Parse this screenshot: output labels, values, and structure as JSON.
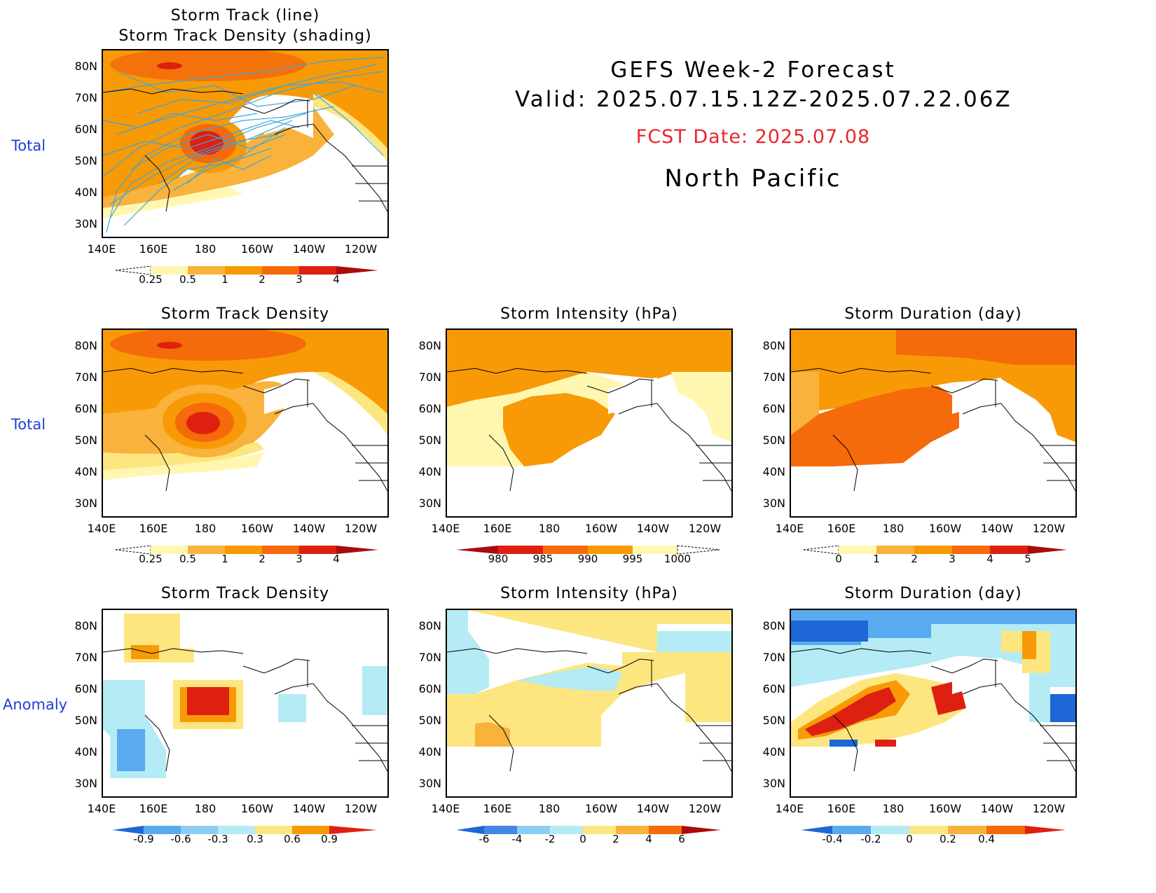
{
  "header": {
    "line1": "GEFS Week-2 Forecast",
    "line2": "Valid: 2025.07.15.12Z-2025.07.22.06Z",
    "fcst": "FCST Date: 2025.07.08",
    "region": "North Pacific"
  },
  "rows": {
    "r1": "Total",
    "r2": "Total",
    "r3": "Anomaly"
  },
  "axes": {
    "lat": [
      "80N",
      "70N",
      "60N",
      "50N",
      "40N",
      "30N"
    ],
    "lon": [
      "140E",
      "160E",
      "180",
      "160W",
      "140W",
      "120W"
    ]
  },
  "panels": {
    "p1": {
      "title1": "Storm Track (line)",
      "title2": "Storm Track Density (shading)"
    },
    "p2": {
      "title": "Storm Track Density"
    },
    "p3": {
      "title": "Storm Intensity (hPa)"
    },
    "p4": {
      "title": "Storm Duration (day)"
    },
    "p5": {
      "title": "Storm Track Density"
    },
    "p6": {
      "title": "Storm Intensity (hPa)"
    },
    "p7": {
      "title": "Storm Duration (day)"
    }
  },
  "colorbars": {
    "density": [
      "0.25",
      "0.5",
      "1",
      "2",
      "3",
      "4"
    ],
    "intensity": [
      "980",
      "985",
      "990",
      "995",
      "1000"
    ],
    "duration": [
      "0",
      "1",
      "2",
      "3",
      "4",
      "5"
    ],
    "density_anom": [
      "-0.9",
      "-0.6",
      "-0.3",
      "0.3",
      "0.6",
      "0.9"
    ],
    "intensity_anom": [
      "-6",
      "-4",
      "-2",
      "0",
      "2",
      "4",
      "6"
    ],
    "duration_anom": [
      "-0.4",
      "-0.2",
      "0",
      "0.2",
      "0.4"
    ]
  },
  "colors": {
    "lightyellow": "#fff7b0",
    "yellow": "#fde680",
    "lightorange": "#f9b23c",
    "orange": "#f79a06",
    "darkorange": "#f56a0a",
    "red": "#de2010",
    "darkred": "#a80c0c",
    "lightblue": "#b4ebf5",
    "blue": "#5aaaf0",
    "darkblue": "#1f66d6",
    "track": "#3aa6e0"
  }
}
